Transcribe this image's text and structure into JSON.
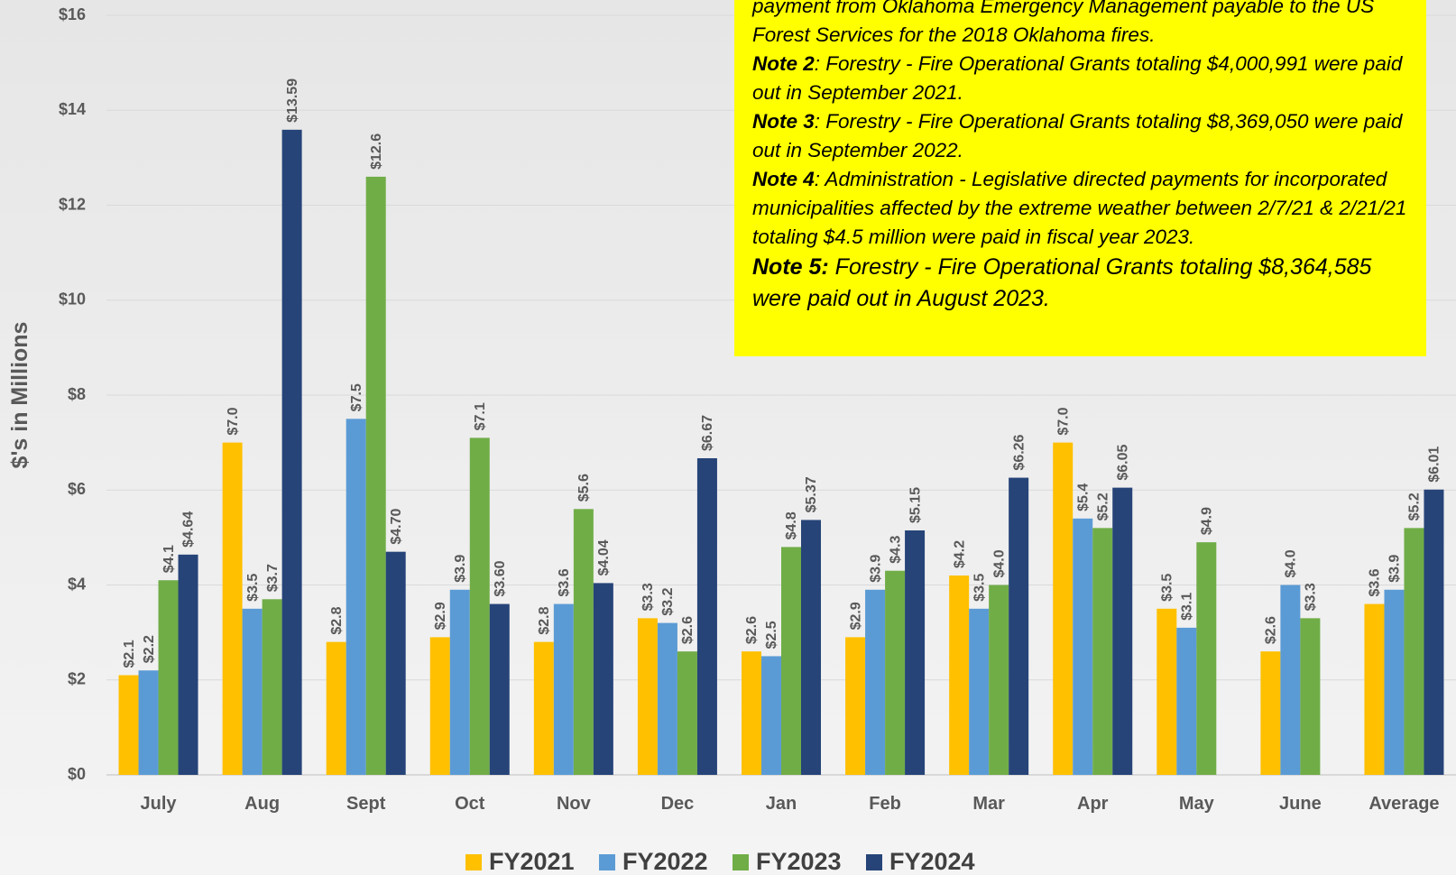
{
  "chart_data": {
    "type": "bar",
    "y_label": "$'s in Millions",
    "categories": [
      "July",
      "Aug",
      "Sept",
      "Oct",
      "Nov",
      "Dec",
      "Jan",
      "Feb",
      "Mar",
      "Apr",
      "May",
      "June",
      "Average"
    ],
    "series": [
      {
        "name": "FY2021",
        "color": "#ffc000",
        "values": [
          2.1,
          7.0,
          2.8,
          2.9,
          2.8,
          3.3,
          2.6,
          2.9,
          4.2,
          7.0,
          3.5,
          2.6,
          3.6
        ],
        "value_labels": [
          "$2.1",
          "$7.0",
          "$2.8",
          "$2.9",
          "$2.8",
          "$3.3",
          "$2.6",
          "$2.9",
          "$4.2",
          "$7.0",
          "$3.5",
          "$2.6",
          "$3.6"
        ]
      },
      {
        "name": "FY2022",
        "color": "#5b9bd5",
        "values": [
          2.2,
          3.5,
          7.5,
          3.9,
          3.6,
          3.2,
          2.5,
          3.9,
          3.5,
          5.4,
          3.1,
          4.0,
          3.9
        ],
        "value_labels": [
          "$2.2",
          "$3.5",
          "$7.5",
          "$3.9",
          "$3.6",
          "$3.2",
          "$2.5",
          "$3.9",
          "$3.5",
          "$5.4",
          "$3.1",
          "$4.0",
          "$3.9"
        ]
      },
      {
        "name": "FY2023",
        "color": "#70ad47",
        "values": [
          4.1,
          3.7,
          12.6,
          7.1,
          5.6,
          2.6,
          4.8,
          4.3,
          4.0,
          5.2,
          4.9,
          3.3,
          5.2
        ],
        "value_labels": [
          "$4.1",
          "$3.7",
          "$12.6",
          "$7.1",
          "$5.6",
          "$2.6",
          "$4.8",
          "$4.3",
          "$4.0",
          "$5.2",
          "$4.9",
          "$3.3",
          "$5.2"
        ]
      },
      {
        "name": "FY2024",
        "color": "#264478",
        "values": [
          4.64,
          13.59,
          4.7,
          3.6,
          4.04,
          6.67,
          5.37,
          5.15,
          6.26,
          6.05,
          null,
          null,
          6.01
        ],
        "value_labels": [
          "$4.64",
          "$13.59",
          "$4.70",
          "$3.60",
          "$4.04",
          "$6.67",
          "$5.37",
          "$5.15",
          "$6.26",
          "$6.05",
          null,
          null,
          "$6.01"
        ]
      }
    ],
    "ylim": [
      0,
      16
    ],
    "yticks": [
      {
        "value": 0,
        "label": "$0"
      },
      {
        "value": 2,
        "label": "$2"
      },
      {
        "value": 4,
        "label": "$4"
      },
      {
        "value": 6,
        "label": "$6"
      },
      {
        "value": 8,
        "label": "$8"
      },
      {
        "value": 10,
        "label": "$10"
      },
      {
        "value": 12,
        "label": "$12"
      },
      {
        "value": 14,
        "label": "$14"
      },
      {
        "value": 16,
        "label": "$16"
      }
    ],
    "grid": true,
    "legend": "bottom",
    "annotations": [
      {
        "text": "payment from Oklahoma Emergency Management payable to the US Forest Services for the 2018 Oklahoma fires."
      },
      {
        "label": "Note 2",
        "text": ": Forestry  - Fire Operational Grants totaling $4,000,991 were paid out in September 2021."
      },
      {
        "label": "Note 3",
        "text": ": Forestry  - Fire Operational Grants totaling $8,369,050 were paid out in September 2022."
      },
      {
        "label": "Note 4",
        "text": ": Administration - Legislative directed payments for incorporated municipalities affected by the extreme weather between 2/7/21 & 2/21/21 totaling $4.5 million were paid in fiscal year 2023."
      },
      {
        "label": "Note 5:",
        "text": " Forestry - Fire Operational Grants totaling $8,364,585 were paid out in August 2023."
      }
    ]
  }
}
